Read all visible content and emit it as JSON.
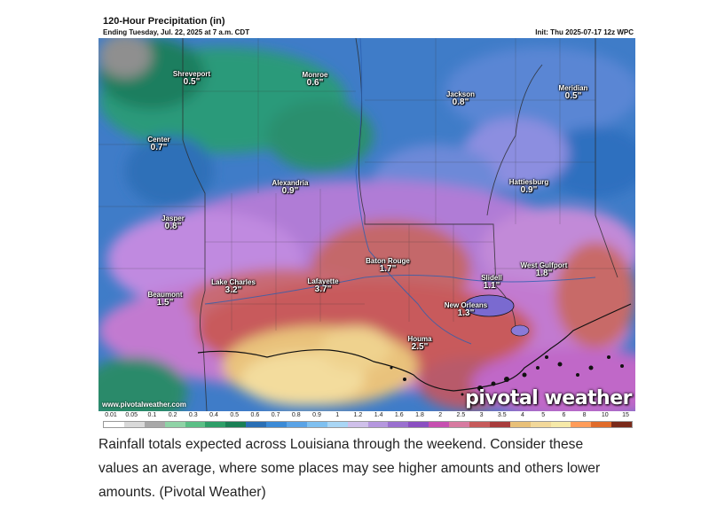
{
  "map": {
    "title": "120-Hour Precipitation (in)",
    "subtitle": "Ending Tuesday, Jul. 22, 2025 at 7 a.m. CDT",
    "init": "Init: Thu 2025-07-17 12z WPC",
    "watermark_url": "www.pivotalweather.com",
    "logo": "pivotal weather",
    "cities": [
      {
        "name": "Shreveport",
        "value": "0.5\""
      },
      {
        "name": "Monroe",
        "value": "0.6\""
      },
      {
        "name": "Jackson",
        "value": "0.8\""
      },
      {
        "name": "Meridian",
        "value": "0.5\""
      },
      {
        "name": "Center",
        "value": "0.7\""
      },
      {
        "name": "Alexandria",
        "value": "0.9\""
      },
      {
        "name": "Hattiesburg",
        "value": "0.9\""
      },
      {
        "name": "Jasper",
        "value": "0.8\""
      },
      {
        "name": "Baton Rouge",
        "value": "1.7\""
      },
      {
        "name": "West Gulfport",
        "value": "1.8\""
      },
      {
        "name": "Lake Charles",
        "value": "3.2\""
      },
      {
        "name": "Lafayette",
        "value": "3.7\""
      },
      {
        "name": "Slidell",
        "value": "1.1\""
      },
      {
        "name": "Beaumont",
        "value": "1.5\""
      },
      {
        "name": "New Orleans",
        "value": "1.3\""
      },
      {
        "name": "Houma",
        "value": "2.5\""
      }
    ],
    "scale_ticks": [
      "0.01",
      "0.05",
      "0.1",
      "0.2",
      "0.3",
      "0.4",
      "0.5",
      "0.6",
      "0.7",
      "0.8",
      "0.9",
      "1",
      "1.2",
      "1.4",
      "1.6",
      "1.8",
      "2",
      "2.5",
      "3",
      "3.5",
      "4",
      "5",
      "6",
      "8",
      "10",
      "15"
    ],
    "scale_colors": [
      "#ffffff",
      "#d9d9d9",
      "#a8a8a8",
      "#8fd3a6",
      "#5bbf86",
      "#2e9e68",
      "#1a7f55",
      "#2a6fb5",
      "#3b8ad6",
      "#5aa3e6",
      "#7fc0f0",
      "#a9d6f5",
      "#cfc0ea",
      "#b597de",
      "#9a70cf",
      "#8a4fc1",
      "#c64fb0",
      "#d77aa0",
      "#c65a5a",
      "#a83c3c",
      "#e8c078",
      "#f2d89a",
      "#f6e9a8",
      "#ff9c5a",
      "#e06b2a",
      "#7a2a1a"
    ]
  },
  "caption": "Rainfall totals expected across Louisiana through the weekend. Consider these values an average, where some places may see higher amounts and others lower amounts. (Pivotal Weather)"
}
